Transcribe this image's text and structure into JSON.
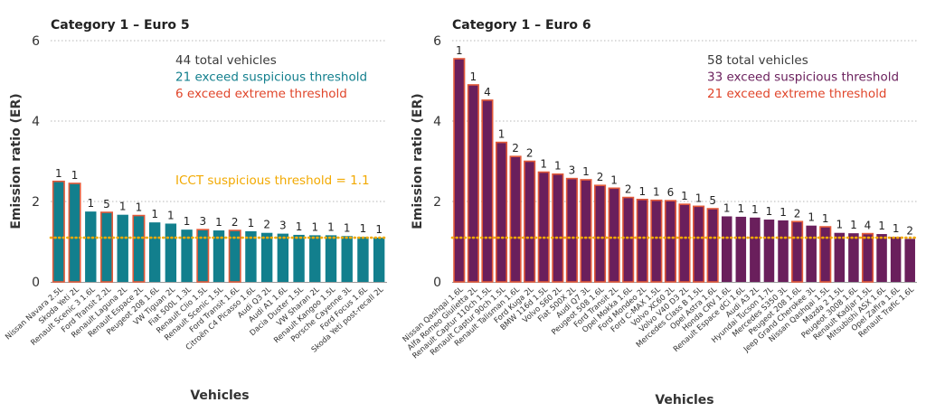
{
  "chart_data": [
    {
      "type": "bar",
      "title": "Category 1 – Euro 5",
      "ylabel": "Emission ratio (ER)",
      "xlabel": "Vehicles",
      "ylim": [
        0,
        6
      ],
      "yticks": [
        0,
        2,
        4,
        6
      ],
      "grid": true,
      "bar_color": "#127f8d",
      "highlight_color": "#e35a3a",
      "threshold": 1.1,
      "threshold_color": "#f2a900",
      "threshold_label": "ICCT suspicious threshold = 1.1",
      "annotations": [
        {
          "text": "44 total vehicles",
          "color": "#3a3a3a"
        },
        {
          "text": "21 exceed suspicious threshold",
          "color": "#127f8d"
        },
        {
          "text": "6 exceed extreme threshold",
          "color": "#e0452a"
        }
      ],
      "categories": [
        "Nissan Navara 2.5L",
        "Skoda Yeti 2L",
        "Renault Scenic 3 1.6L",
        "Ford Transit 2.2L",
        "Renault Laguna 2L",
        "Renault Espace 2L",
        "Peugeot 208 1.6L",
        "VW Tiguan 2L",
        "Fiat 500L 1.3L",
        "Renault Clio 1.5L",
        "Renault Scenic 1.5L",
        "Ford Transit 1.6L",
        "Citroën C4 Picasso 1.6L",
        "Audi Q3 2L",
        "Audi A1 1.6L",
        "Dacia Duster 1.5L",
        "VW Sharan 2L",
        "Renault Kangoo 1.5L",
        "Porsche Cayenne 3L",
        "Ford Focus 1.6L",
        "Skoda Yeti post-recall 2L"
      ],
      "values": [
        2.5,
        2.45,
        1.75,
        1.73,
        1.67,
        1.65,
        1.48,
        1.45,
        1.3,
        1.3,
        1.28,
        1.28,
        1.26,
        1.22,
        1.2,
        1.17,
        1.16,
        1.16,
        1.14,
        1.12,
        1.1
      ],
      "counts": [
        "1",
        "1",
        "1",
        "5",
        "1",
        "1",
        "1",
        "1",
        "1",
        "3",
        "1",
        "2",
        "1",
        "2",
        "3",
        "1",
        "1",
        "1",
        "1",
        "1",
        "1"
      ],
      "highlighted": [
        true,
        true,
        false,
        true,
        false,
        true,
        false,
        false,
        false,
        true,
        false,
        true,
        false,
        false,
        false,
        false,
        false,
        false,
        false,
        false,
        false
      ]
    },
    {
      "type": "bar",
      "title": "Category 1 – Euro 6",
      "ylabel": "Emission ratio (ER)",
      "xlabel": "Vehicles",
      "ylim": [
        0,
        6
      ],
      "yticks": [
        0,
        2,
        4,
        6
      ],
      "grid": true,
      "bar_color": "#6a1f5c",
      "highlight_color": "#e35a3a",
      "threshold": 1.1,
      "threshold_color": "#f2a900",
      "annotations": [
        {
          "text": "58 total vehicles",
          "color": "#3a3a3a"
        },
        {
          "text": "33 exceed suspicious threshold",
          "color": "#6a1f5c"
        },
        {
          "text": "21 exceed extreme threshold",
          "color": "#e0452a"
        }
      ],
      "categories": [
        "Nissan Qashqai 1.6L",
        "Alfa Romeo Giulietta 2L",
        "Renault Captur 110ch 1.5L",
        "Renault Captur 90ch 1.5L",
        "Renault Talisman 1.6L",
        "Ford Kuga 2L",
        "BMW 116d 1.5L",
        "Volvo S60 2L",
        "Fiat 500X 2L",
        "Audi Q7 3L",
        "Peugeot 508 1.6L",
        "Ford Transit 2L",
        "Opel Mokka 1.6L",
        "Ford Mondeo 2L",
        "Ford C-MAX 1.5L",
        "Volvo XC60 2L",
        "Volvo V40 D3 2L",
        "Mercedes Class B 1.5L",
        "Opel Astra 1.6L",
        "Honda CRV 1.6L",
        "Renault Espace dCi 1.6L",
        "Audi A3 2L",
        "Hyundai Tucson 1.7L",
        "Mercedes S350 3L",
        "Peugeot 208 1.6L",
        "Jeep Grand Cherokee 3L",
        "Nissan Qashqai 1.5L",
        "Mazda 2 1.5L",
        "Peugeot 3008 1.6L",
        "Renault Kadjar 1.5L",
        "Mitsubishi ASX 1.6L",
        "Opel Zafira 1.6L",
        "Renault Trafic 1.6L"
      ],
      "values": [
        5.55,
        4.9,
        4.52,
        3.47,
        3.12,
        3.0,
        2.73,
        2.68,
        2.57,
        2.54,
        2.4,
        2.33,
        2.1,
        2.05,
        2.03,
        2.02,
        1.93,
        1.88,
        1.82,
        1.63,
        1.62,
        1.6,
        1.55,
        1.53,
        1.5,
        1.4,
        1.37,
        1.22,
        1.21,
        1.2,
        1.19,
        1.12,
        1.07
      ],
      "counts": [
        "1",
        "1",
        "4",
        "1",
        "2",
        "2",
        "1",
        "1",
        "3",
        "1",
        "2",
        "1",
        "2",
        "1",
        "1",
        "6",
        "1",
        "1",
        "5",
        "1",
        "1",
        "1",
        "1",
        "1",
        "2",
        "1",
        "1",
        "1",
        "1",
        "4",
        "1",
        "1",
        "2"
      ],
      "highlighted": [
        true,
        true,
        true,
        true,
        true,
        true,
        true,
        true,
        true,
        true,
        true,
        true,
        true,
        true,
        true,
        true,
        true,
        true,
        true,
        false,
        false,
        false,
        false,
        false,
        true,
        false,
        true,
        false,
        false,
        true,
        false,
        false,
        false
      ]
    }
  ]
}
